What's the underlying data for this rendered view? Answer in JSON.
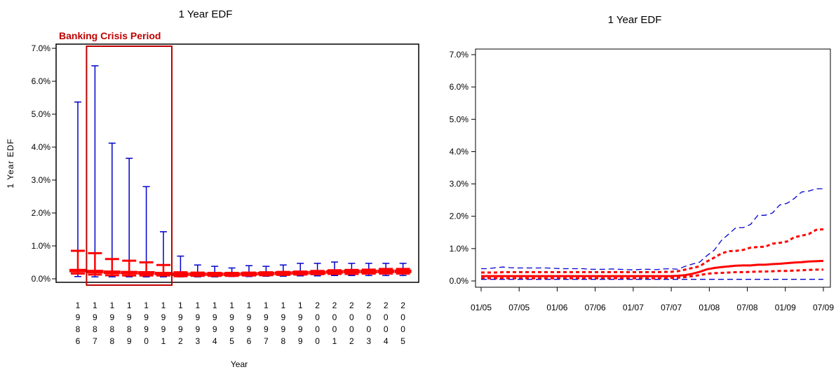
{
  "chart_data": [
    {
      "type": "box",
      "title": "1 Year EDF",
      "xlabel": "Year",
      "ylabel": "1 Year EDF",
      "yticks": [
        "0.0%",
        "1.0%",
        "2.0%",
        "3.0%",
        "4.0%",
        "5.0%",
        "6.0%",
        "7.0%"
      ],
      "ylim": [
        0,
        7
      ],
      "grid": false,
      "annotation": {
        "text": "Banking Crisis Period",
        "from": "1987",
        "to": "1991",
        "color": "#c00000"
      },
      "categories": [
        "1986",
        "1987",
        "1988",
        "1989",
        "1990",
        "1991",
        "1992",
        "1993",
        "1994",
        "1995",
        "1996",
        "1997",
        "1998",
        "1999",
        "2000",
        "2001",
        "2002",
        "2003",
        "2004",
        "2005"
      ],
      "series": [
        {
          "color": "#0000cc",
          "values": [
            5.37,
            6.47,
            4.12,
            3.66,
            2.8,
            1.43,
            0.69,
            0.42,
            0.38,
            0.33,
            0.4,
            0.38,
            0.42,
            0.47,
            0.47,
            0.51,
            0.47,
            0.47,
            0.47,
            0.47
          ]
        },
        {
          "values": [
            0.07,
            0.06,
            0.06,
            0.06,
            0.06,
            0.06,
            0.06,
            0.06,
            0.06,
            0.07,
            0.07,
            0.08,
            0.08,
            0.09,
            0.09,
            0.1,
            0.1,
            0.1,
            0.1,
            0.1
          ]
        },
        {
          "color": "#ff0000",
          "values": [
            0.85,
            0.78,
            0.6,
            0.55,
            0.5,
            0.42,
            0.2,
            0.19,
            0.18,
            0.18,
            0.19,
            0.2,
            0.21,
            0.22,
            0.24,
            0.26,
            0.27,
            0.28,
            0.3,
            0.3
          ]
        },
        {
          "values": [
            0.16,
            0.13,
            0.11,
            0.1,
            0.1,
            0.1,
            0.08,
            0.09,
            0.09,
            0.09,
            0.1,
            0.11,
            0.12,
            0.13,
            0.14,
            0.15,
            0.15,
            0.16,
            0.16,
            0.16
          ]
        },
        {
          "values": [
            0.25,
            0.22,
            0.2,
            0.19,
            0.18,
            0.16,
            0.14,
            0.14,
            0.14,
            0.14,
            0.15,
            0.16,
            0.17,
            0.18,
            0.19,
            0.21,
            0.22,
            0.22,
            0.23,
            0.23
          ]
        }
      ]
    },
    {
      "type": "line",
      "title": "1 Year EDF",
      "yticks": [
        "0.0%",
        "1.0%",
        "2.0%",
        "3.0%",
        "4.0%",
        "5.0%",
        "6.0%",
        "7.0%"
      ],
      "ylim": [
        0,
        7
      ],
      "xticks": [
        "01/05",
        "07/05",
        "01/06",
        "07/06",
        "01/07",
        "07/07",
        "01/08",
        "07/08",
        "01/09",
        "07/09"
      ],
      "grid": false,
      "series": [
        {
          "color": "#0000cc",
          "style": "dashed",
          "values": [
            0.38,
            0.38,
            0.41,
            0.43,
            0.41,
            0.4,
            0.4,
            0.4,
            0.4,
            0.4,
            0.39,
            0.38,
            0.38,
            0.38,
            0.38,
            0.36,
            0.36,
            0.36,
            0.37,
            0.36,
            0.35,
            0.34,
            0.36,
            0.36,
            0.35,
            0.37,
            0.38,
            0.36,
            0.45,
            0.52,
            0.58,
            0.78,
            0.95,
            1.25,
            1.45,
            1.65,
            1.65,
            1.75,
            2.03,
            2.03,
            2.1,
            2.35,
            2.4,
            2.55,
            2.75,
            2.78,
            2.85,
            2.85
          ]
        },
        {
          "color": "#ff0000",
          "style": "dotted",
          "values": [
            0.26,
            0.26,
            0.26,
            0.27,
            0.27,
            0.27,
            0.27,
            0.27,
            0.27,
            0.27,
            0.27,
            0.27,
            0.27,
            0.27,
            0.27,
            0.27,
            0.27,
            0.27,
            0.27,
            0.27,
            0.27,
            0.27,
            0.27,
            0.27,
            0.27,
            0.28,
            0.28,
            0.3,
            0.35,
            0.4,
            0.45,
            0.6,
            0.72,
            0.85,
            0.92,
            0.93,
            0.96,
            1.03,
            1.05,
            1.06,
            1.15,
            1.18,
            1.22,
            1.35,
            1.4,
            1.45,
            1.58,
            1.6
          ]
        },
        {
          "color": "#ff0000",
          "style": "solid",
          "values": [
            0.15,
            0.15,
            0.15,
            0.15,
            0.15,
            0.15,
            0.15,
            0.15,
            0.15,
            0.15,
            0.15,
            0.15,
            0.15,
            0.15,
            0.15,
            0.15,
            0.15,
            0.15,
            0.15,
            0.15,
            0.15,
            0.15,
            0.15,
            0.15,
            0.15,
            0.15,
            0.15,
            0.16,
            0.18,
            0.22,
            0.28,
            0.36,
            0.4,
            0.43,
            0.45,
            0.47,
            0.48,
            0.48,
            0.5,
            0.5,
            0.52,
            0.53,
            0.55,
            0.57,
            0.58,
            0.6,
            0.61,
            0.62
          ]
        },
        {
          "color": "#ff0000",
          "style": "dotted",
          "values": [
            0.08,
            0.08,
            0.08,
            0.08,
            0.08,
            0.08,
            0.08,
            0.08,
            0.08,
            0.08,
            0.08,
            0.08,
            0.08,
            0.08,
            0.08,
            0.08,
            0.08,
            0.08,
            0.08,
            0.08,
            0.08,
            0.08,
            0.08,
            0.08,
            0.08,
            0.08,
            0.09,
            0.1,
            0.12,
            0.15,
            0.18,
            0.22,
            0.24,
            0.25,
            0.26,
            0.27,
            0.27,
            0.28,
            0.29,
            0.29,
            0.3,
            0.31,
            0.31,
            0.32,
            0.33,
            0.34,
            0.35,
            0.35
          ]
        },
        {
          "color": "#0000cc",
          "style": "dashed",
          "values": [
            0.05,
            0.05,
            0.05,
            0.05,
            0.05,
            0.05,
            0.05,
            0.05,
            0.05,
            0.05,
            0.05,
            0.05,
            0.05,
            0.05,
            0.05,
            0.05,
            0.05,
            0.05,
            0.05,
            0.05,
            0.05,
            0.05,
            0.05,
            0.05,
            0.05,
            0.05,
            0.05,
            0.05,
            0.05,
            0.05,
            0.05,
            0.05,
            0.05,
            0.05,
            0.05,
            0.05,
            0.05,
            0.05,
            0.05,
            0.05,
            0.05,
            0.05,
            0.05,
            0.05,
            0.05,
            0.05,
            0.05,
            0.05
          ]
        }
      ]
    }
  ]
}
